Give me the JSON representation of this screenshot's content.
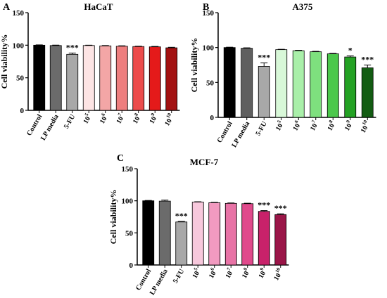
{
  "chart_data": [
    {
      "type": "bar",
      "panel": "A",
      "title": "HaCaT",
      "ylabel": "Cell viability%",
      "ylim": [
        0,
        150
      ],
      "yticks": [
        0,
        50,
        100,
        150
      ],
      "categories": [
        "Control",
        "LP media",
        "5-FU",
        "10^5",
        "10^6",
        "10^7",
        "10^8",
        "10^9",
        "10^10"
      ],
      "values": [
        100,
        99.5,
        86,
        99.5,
        99,
        98.5,
        98,
        97.5,
        96
      ],
      "errors": [
        0.5,
        0.6,
        2,
        0.5,
        0.5,
        0.6,
        0.6,
        0.7,
        0.8
      ],
      "significance": [
        "",
        "",
        "***",
        "",
        "",
        "",
        "",
        "",
        ""
      ],
      "colors": [
        "#000000",
        "#6b6b6b",
        "#a8a8a8",
        "#fde4e4",
        "#f3a6a6",
        "#ee7e7e",
        "#ec4c4c",
        "#e41a1a",
        "#a31212"
      ]
    },
    {
      "type": "bar",
      "panel": "B",
      "title": "A375",
      "ylabel": "Cell viability%",
      "ylim": [
        0,
        150
      ],
      "yticks": [
        0,
        50,
        100,
        150
      ],
      "categories": [
        "Control",
        "LP media",
        "5-FU",
        "10^5",
        "10^6",
        "10^7",
        "10^8",
        "10^9",
        "10^10"
      ],
      "values": [
        100,
        99,
        73,
        97,
        95.5,
        94,
        91,
        86.5,
        71
      ],
      "errors": [
        0.5,
        0.6,
        5,
        0.5,
        0.6,
        0.6,
        0.7,
        1.5,
        4
      ],
      "significance": [
        "",
        "",
        "***",
        "",
        "",
        "",
        "",
        "*",
        "***"
      ],
      "colors": [
        "#000000",
        "#5f5f5f",
        "#a8a8a8",
        "#d8f8d8",
        "#a9efa9",
        "#7ee07e",
        "#4bc84b",
        "#24a224",
        "#135c13"
      ]
    },
    {
      "type": "bar",
      "panel": "C",
      "title": "MCF-7",
      "ylabel": "Cell viability%",
      "ylim": [
        0,
        150
      ],
      "yticks": [
        0,
        50,
        100,
        150
      ],
      "categories": [
        "Control",
        "LP media",
        "5-FU",
        "10^5",
        "10^6",
        "10^7",
        "10^8",
        "10^9",
        "10^10"
      ],
      "values": [
        100,
        99.5,
        67,
        98,
        97,
        96,
        95.5,
        83.5,
        78.5
      ],
      "errors": [
        0.5,
        1.5,
        0.8,
        0.5,
        0.6,
        0.6,
        0.7,
        1.2,
        1.2
      ],
      "significance": [
        "",
        "",
        "***",
        "",
        "",
        "",
        "",
        "***",
        "***"
      ],
      "colors": [
        "#000000",
        "#6b6b6b",
        "#a8a8a8",
        "#f7c8dc",
        "#f29ac0",
        "#e873a6",
        "#e04a8c",
        "#c8226a",
        "#9a1648"
      ]
    }
  ]
}
